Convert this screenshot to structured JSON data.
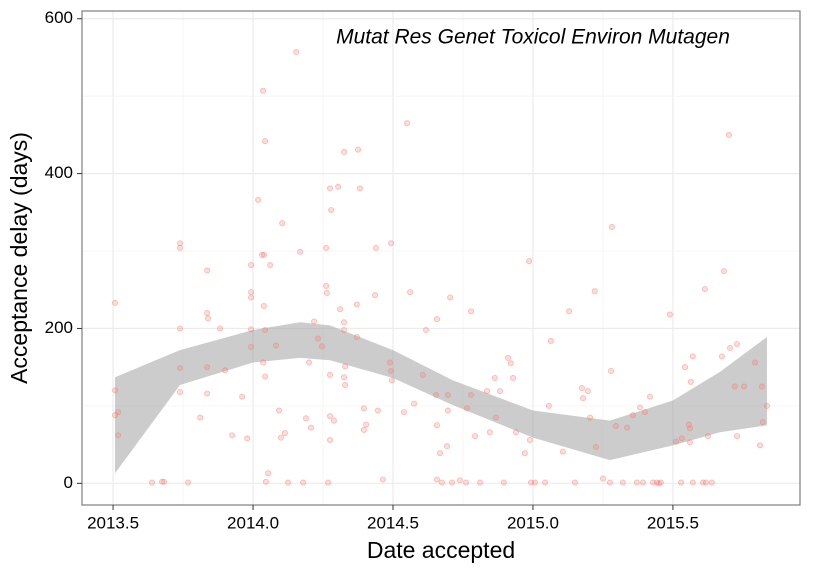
{
  "chart_data": {
    "type": "scatter",
    "title": "Mutat Res Genet Toxicol Environ Mutagen",
    "x_label": "Date accepted",
    "y_label": "Acceptance delay (days)",
    "color": "#f8766d",
    "grid": true,
    "xlim": [
      2013.389,
      2015.954
    ],
    "ylim": [
      -28,
      610
    ],
    "xticks": [
      2013.5,
      {
        "value": 2014,
        "label": "2014.0"
      },
      2014.5,
      {
        "value": 2015,
        "label": "2015.0"
      },
      2015.5
    ],
    "yticks": [
      0,
      200,
      400,
      600
    ],
    "x": [
      2013.507,
      2013.507,
      2013.507,
      2013.518,
      2013.518,
      2013.639,
      2013.675,
      2013.682,
      2013.768,
      2013.739,
      2013.739,
      2013.739,
      2013.739,
      2013.739,
      2013.811,
      2013.836,
      2013.836,
      2013.839,
      2013.836,
      2013.836,
      2013.882,
      2013.9,
      2013.925,
      2013.961,
      2013.979,
      2013.993,
      2013.993,
      2013.993,
      2013.993,
      2013.993,
      2014.018,
      2014.032,
      2014.036,
      2014.039,
      2014.043,
      2014.039,
      2014.043,
      2014.036,
      2014.043,
      2014.054,
      2014.046,
      2014.061,
      2014.082,
      2014.093,
      2014.1,
      2014.104,
      2014.114,
      2014.125,
      2014.154,
      2014.168,
      2014.179,
      2014.189,
      2014.2,
      2014.207,
      2014.218,
      2014.232,
      2014.246,
      2014.261,
      2014.261,
      2014.264,
      2014.268,
      2014.275,
      2014.279,
      2014.275,
      2014.275,
      2014.275,
      2014.289,
      2014.304,
      2014.311,
      2014.325,
      2014.325,
      2014.325,
      2014.329,
      2014.329,
      2014.325,
      2014.371,
      2014.375,
      2014.382,
      2014.371,
      2014.396,
      2014.396,
      2014.404,
      2014.436,
      2014.439,
      2014.446,
      2014.464,
      2014.489,
      2014.493,
      2014.493,
      2014.496,
      2014.539,
      2014.55,
      2014.561,
      2014.575,
      2014.607,
      2014.618,
      2014.657,
      2014.654,
      2014.657,
      2014.657,
      2014.668,
      2014.675,
      2014.693,
      2014.696,
      2014.704,
      2014.696,
      2014.711,
      2014.739,
      2014.761,
      2014.764,
      2014.779,
      2014.779,
      2014.793,
      2014.811,
      2014.836,
      2014.846,
      2014.868,
      2014.864,
      2014.882,
      2014.896,
      2014.911,
      2014.921,
      2014.929,
      2014.939,
      2014.971,
      2014.986,
      2014.989,
      2014.993,
      2015.007,
      2015.043,
      2015.057,
      2015.064,
      2015.107,
      2015.129,
      2015.15,
      2015.175,
      2015.179,
      2015.196,
      2015.204,
      2015.221,
      2015.225,
      2015.25,
      2015.275,
      2015.279,
      2015.282,
      2015.296,
      2015.321,
      2015.336,
      2015.357,
      2015.371,
      2015.382,
      2015.393,
      2015.4,
      2015.418,
      2015.429,
      2015.443,
      2015.45,
      2015.457,
      2015.489,
      2015.511,
      2015.529,
      2015.532,
      2015.543,
      2015.557,
      2015.561,
      2015.561,
      2015.564,
      2015.571,
      2015.571,
      2015.607,
      2015.614,
      2015.618,
      2015.625,
      2015.639,
      2015.675,
      2015.682,
      2015.7,
      2015.704,
      2015.721,
      2015.729,
      2015.729,
      2015.754,
      2015.793,
      2015.811,
      2015.818,
      2015.821,
      2015.836
    ],
    "values": [
      233,
      120,
      88,
      62,
      92,
      1,
      2,
      2,
      1,
      310,
      304,
      200,
      149,
      118,
      85,
      275,
      220,
      213,
      150,
      116,
      200,
      146,
      62,
      112,
      58,
      176,
      247,
      240,
      282,
      199,
      366,
      295,
      507,
      295,
      442,
      229,
      198,
      156,
      138,
      13,
      2,
      282,
      178,
      94,
      59,
      336,
      65,
      1,
      557,
      299,
      1,
      84,
      156,
      72,
      209,
      187,
      177,
      304,
      255,
      246,
      1,
      381,
      353,
      140,
      87,
      56,
      81,
      383,
      225,
      428,
      198,
      137,
      127,
      151,
      208,
      231,
      431,
      381,
      189,
      69,
      97,
      76,
      243,
      304,
      94,
      5,
      156,
      310,
      145,
      133,
      92,
      465,
      247,
      103,
      140,
      198,
      212,
      114,
      75,
      5,
      39,
      1,
      48,
      114,
      240,
      94,
      1,
      4,
      1,
      97,
      222,
      114,
      61,
      1,
      119,
      66,
      85,
      136,
      119,
      1,
      162,
      155,
      136,
      66,
      39,
      287,
      56,
      1,
      1,
      1,
      100,
      184,
      41,
      222,
      1,
      123,
      110,
      119,
      85,
      248,
      47,
      6,
      1,
      145,
      331,
      74,
      1,
      72,
      88,
      1,
      98,
      1,
      92,
      112,
      1,
      1,
      0,
      1,
      218,
      54,
      1,
      58,
      150,
      76,
      71,
      53,
      131,
      164,
      1,
      1,
      251,
      1,
      61,
      1,
      164,
      274,
      450,
      175,
      125,
      180,
      61,
      125,
      156,
      49,
      125,
      79,
      100
    ],
    "band": {
      "color": "#999999",
      "x": [
        2013.507,
        2013.739,
        2014.0,
        2014.168,
        2014.275,
        2014.5,
        2014.714,
        2015.0,
        2015.275,
        2015.5,
        2015.668,
        2015.836
      ],
      "upper": [
        137,
        172,
        198,
        208,
        204,
        172,
        133,
        94,
        81,
        107,
        144,
        189
      ],
      "lower": [
        13,
        127,
        156,
        162,
        159,
        136,
        101,
        59,
        30,
        49,
        66,
        75
      ]
    }
  }
}
